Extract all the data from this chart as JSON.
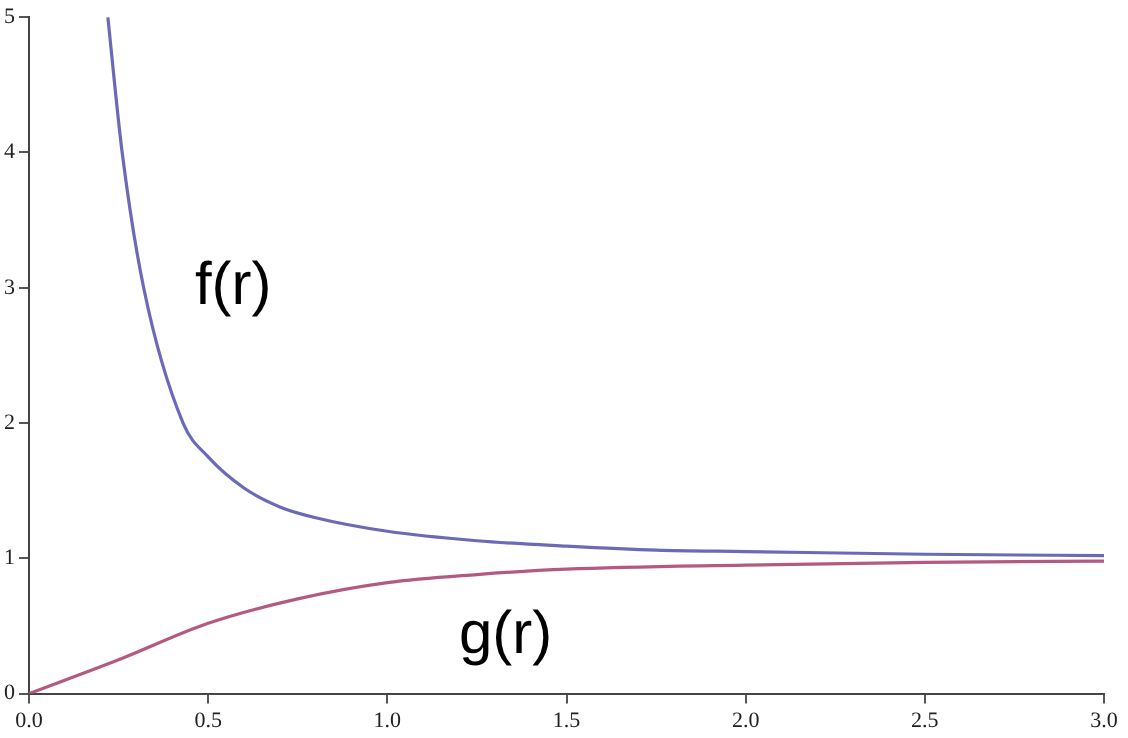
{
  "chart_data": {
    "type": "line",
    "x": [
      0.22,
      0.26,
      0.32,
      0.43,
      0.5,
      0.6,
      0.7,
      0.8,
      1.0,
      1.25,
      1.5,
      1.75,
      2.0,
      2.5,
      3.0
    ],
    "series": [
      {
        "name": "f(r)",
        "color": "#6a6ab8",
        "values": [
          5,
          4,
          3,
          2,
          1.75,
          1.52,
          1.38,
          1.3,
          1.2,
          1.13,
          1.09,
          1.06,
          1.05,
          1.03,
          1.02
        ]
      },
      {
        "name": "g(r)",
        "color": "#b45a82",
        "x": [
          0,
          0.25,
          0.5,
          0.75,
          1.0,
          1.25,
          1.5,
          2.0,
          2.5,
          3.0
        ],
        "values": [
          0,
          0.25,
          0.52,
          0.7,
          0.82,
          0.88,
          0.92,
          0.95,
          0.97,
          0.98
        ]
      }
    ],
    "xlim": [
      0,
      3
    ],
    "ylim": [
      0,
      5
    ],
    "xticks": [
      {
        "value": 0,
        "label": "0.0"
      },
      {
        "value": 0.5,
        "label": "0.5"
      },
      {
        "value": 1,
        "label": "1.0"
      },
      {
        "value": 1.5,
        "label": "1.5"
      },
      {
        "value": 2,
        "label": "2.0"
      },
      {
        "value": 2.5,
        "label": "2.5"
      },
      {
        "value": 3,
        "label": "3.0"
      }
    ],
    "yticks": [
      0,
      1,
      2,
      3,
      4,
      5
    ],
    "grid": false,
    "legend": false,
    "marker": "none",
    "line_style": "solid"
  }
}
